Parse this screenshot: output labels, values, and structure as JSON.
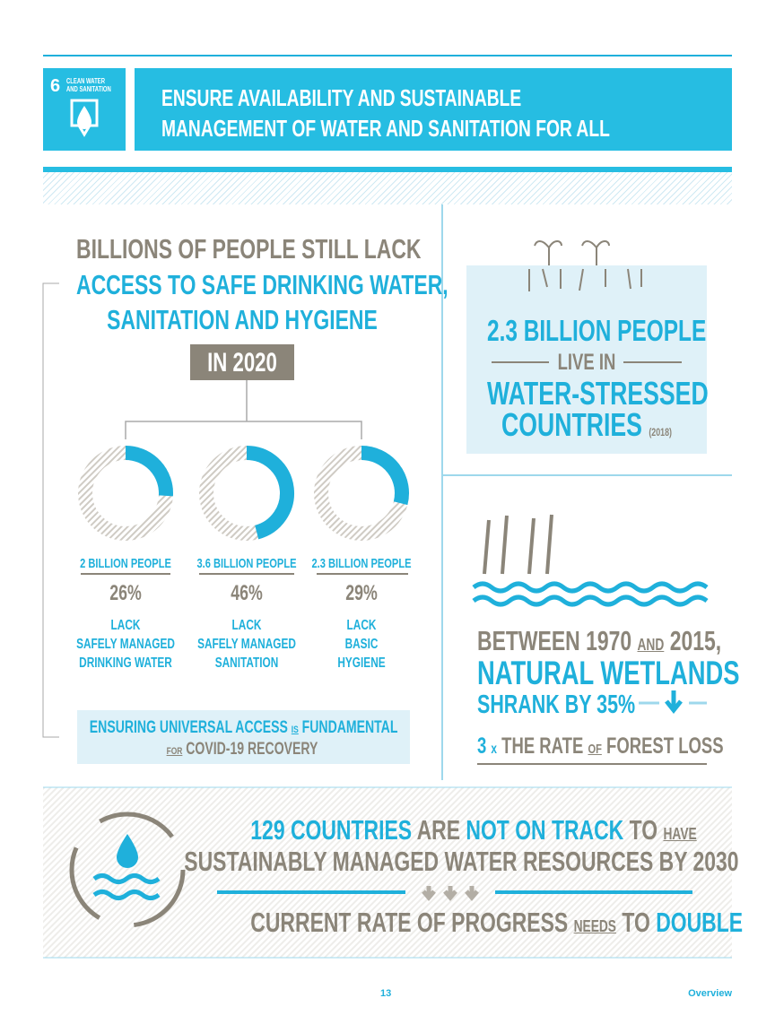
{
  "header": {
    "goal_number": "6",
    "goal_name_line1": "CLEAN WATER",
    "goal_name_line2": "AND SANITATION",
    "title_line1": "ENSURE AVAILABILITY AND SUSTAINABLE",
    "title_line2": "MANAGEMENT OF WATER AND SANITATION FOR ALL"
  },
  "access": {
    "heading_line1": "BILLIONS OF PEOPLE STILL LACK",
    "heading_line2": "ACCESS TO SAFE DRINKING WATER,",
    "heading_line3": "SANITATION AND HYGIENE",
    "year_badge": "IN 2020",
    "items": [
      {
        "people": "2 BILLION PEOPLE",
        "percent": 26,
        "percent_label": "26%",
        "lines": [
          "LACK",
          "SAFELY MANAGED",
          "DRINKING WATER"
        ]
      },
      {
        "people": "3.6 BILLION PEOPLE",
        "percent": 46,
        "percent_label": "46%",
        "lines": [
          "LACK",
          "SAFELY MANAGED",
          "SANITATION"
        ]
      },
      {
        "people": "2.3 BILLION PEOPLE",
        "percent": 29,
        "percent_label": "29%",
        "lines": [
          "LACK",
          "BASIC",
          "HYGIENE"
        ]
      }
    ],
    "note": {
      "part1": "ENSURING UNIVERSAL ACCESS",
      "part2": "IS",
      "part3": "FUNDAMENTAL",
      "part4": "FOR",
      "part5": "COVID-19 RECOVERY"
    }
  },
  "stress": {
    "line1": "2.3 BILLION PEOPLE",
    "line2": "LIVE IN",
    "line3": "WATER-STRESSED",
    "line4": "COUNTRIES",
    "year": "(2018)"
  },
  "wetlands": {
    "part1": "BETWEEN 1970",
    "part2": "AND",
    "part3": "2015,",
    "line2": "NATURAL WETLANDS",
    "line3": "SHRANK BY 35%",
    "rate_number": "3",
    "rate_x": "x",
    "rate_part1": "THE RATE",
    "rate_part2": "OF",
    "rate_part3": "FOREST LOSS"
  },
  "track": {
    "part1": "129 COUNTRIES",
    "part2": "ARE",
    "part3": "NOT ON TRACK",
    "part4": "TO",
    "part5": "HAVE",
    "line2": "SUSTAINABLY MANAGED WATER RESOURCES BY 2030",
    "line3_part1": "CURRENT RATE OF PROGRESS",
    "line3_part2": "NEEDS",
    "line3_part3": "TO",
    "line3_part4": "DOUBLE"
  },
  "footer": {
    "page_number": "13",
    "section": "Overview"
  }
}
